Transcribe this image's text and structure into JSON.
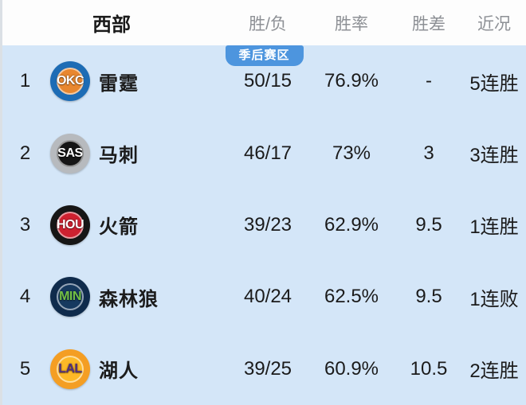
{
  "colors": {
    "header_bg": "#fdfdfd",
    "panel_bg": "#d4e6f8",
    "badge_bg": "#4d95de",
    "title_color": "#1a1a1a",
    "column_header_color": "#8d9095",
    "row_text_color": "#1b1b1b"
  },
  "table": {
    "title": "西部",
    "columns": {
      "record": "胜/负",
      "pct": "胜率",
      "gb": "胜差",
      "streak": "近况"
    },
    "playoff_badge": "季后赛区",
    "rows": [
      {
        "rank": "1",
        "abbr": "OKC",
        "name": "雷霆",
        "record": "50/15",
        "pct": "76.9%",
        "gb": "-",
        "streak": "5连胜",
        "logo": {
          "bg": "#1d6cb5",
          "inner": "#e8872f",
          "fg": "#ffffff"
        }
      },
      {
        "rank": "2",
        "abbr": "SAS",
        "name": "马刺",
        "record": "46/17",
        "pct": "73%",
        "gb": "3",
        "streak": "3连胜",
        "logo": {
          "bg": "#b7babe",
          "inner": "#161616",
          "fg": "#ffffff"
        }
      },
      {
        "rank": "3",
        "abbr": "HOU",
        "name": "火箭",
        "record": "39/23",
        "pct": "62.9%",
        "gb": "9.5",
        "streak": "1连胜",
        "logo": {
          "bg": "#161616",
          "inner": "#ce2130",
          "fg": "#ffffff"
        }
      },
      {
        "rank": "4",
        "abbr": "MIN",
        "name": "森林狼",
        "record": "40/24",
        "pct": "62.5%",
        "gb": "9.5",
        "streak": "1连败",
        "logo": {
          "bg": "#0f2b4c",
          "inner": "#16395f",
          "fg": "#72c045"
        }
      },
      {
        "rank": "5",
        "abbr": "LAL",
        "name": "湖人",
        "record": "39/25",
        "pct": "60.9%",
        "gb": "10.5",
        "streak": "2连胜",
        "logo": {
          "bg": "#f49e23",
          "inner": "#fdb927",
          "fg": "#52307c"
        }
      }
    ]
  }
}
